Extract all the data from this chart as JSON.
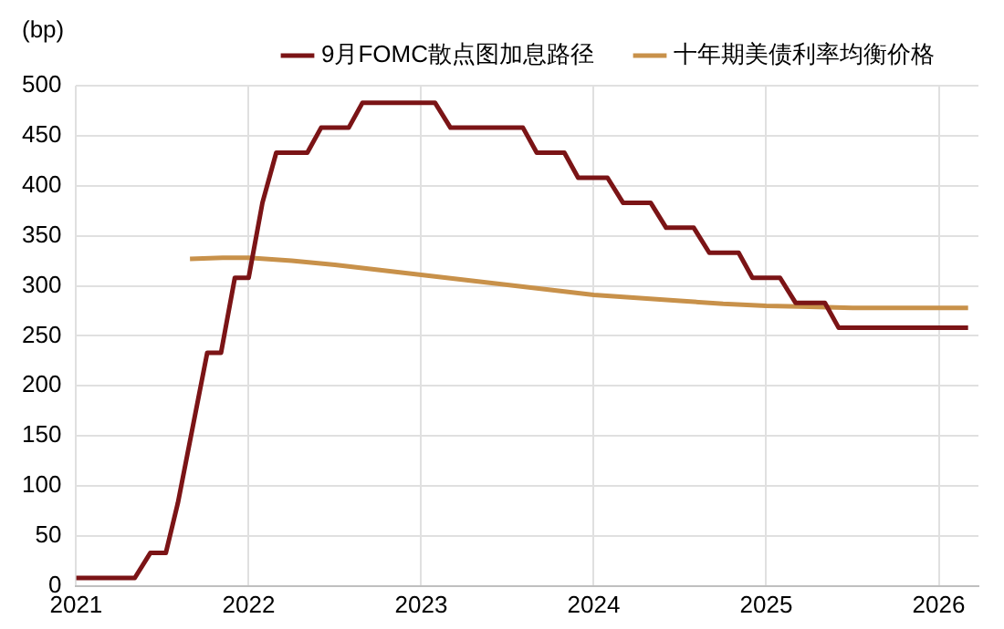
{
  "chart_data": {
    "type": "line",
    "ylabel": "(bp)",
    "xlim": [
      2021,
      2026.23
    ],
    "xticks": [
      2021,
      2022,
      2023,
      2024,
      2025,
      2026
    ],
    "ylim": [
      0,
      500
    ],
    "yticks": [
      0,
      50,
      100,
      150,
      200,
      250,
      300,
      350,
      400,
      450,
      500
    ],
    "grid": true,
    "legend": "top",
    "marker": "none",
    "line_style": "solid",
    "series": [
      {
        "name": "9月FOMC散点图加息路径",
        "color": "#7b1416",
        "x": [
          2021,
          2021.34,
          2021.43,
          2021.52,
          2021.59,
          2021.76,
          2021.84,
          2021.92,
          2022,
          2022.08,
          2022.16,
          2022.34,
          2022.42,
          2022.58,
          2022.66,
          2023.08,
          2023.17,
          2023.59,
          2023.67,
          2023.83,
          2023.91,
          2024.08,
          2024.17,
          2024.33,
          2024.42,
          2024.58,
          2024.67,
          2024.84,
          2024.92,
          2025.08,
          2025.17,
          2025.34,
          2025.42,
          2026.17
        ],
        "values": [
          8,
          8,
          33,
          33,
          83,
          233,
          233,
          308,
          308,
          383,
          433,
          433,
          458,
          458,
          483,
          483,
          458,
          458,
          433,
          433,
          408,
          408,
          383,
          383,
          358,
          358,
          333,
          333,
          308,
          308,
          283,
          283,
          258,
          258
        ]
      },
      {
        "name": "十年期美债利率均衡价格",
        "color": "#c8914a",
        "x": [
          2021.66,
          2021.85,
          2022,
          2022.25,
          2022.5,
          2022.75,
          2023,
          2023.25,
          2023.5,
          2023.75,
          2024,
          2024.25,
          2024.5,
          2024.75,
          2025,
          2025.25,
          2025.5,
          2025.75,
          2026.17
        ],
        "values": [
          327,
          328,
          328,
          325,
          321,
          316,
          311,
          306,
          301,
          296,
          291,
          288,
          285,
          282,
          280,
          279,
          278,
          278,
          278
        ]
      }
    ]
  }
}
